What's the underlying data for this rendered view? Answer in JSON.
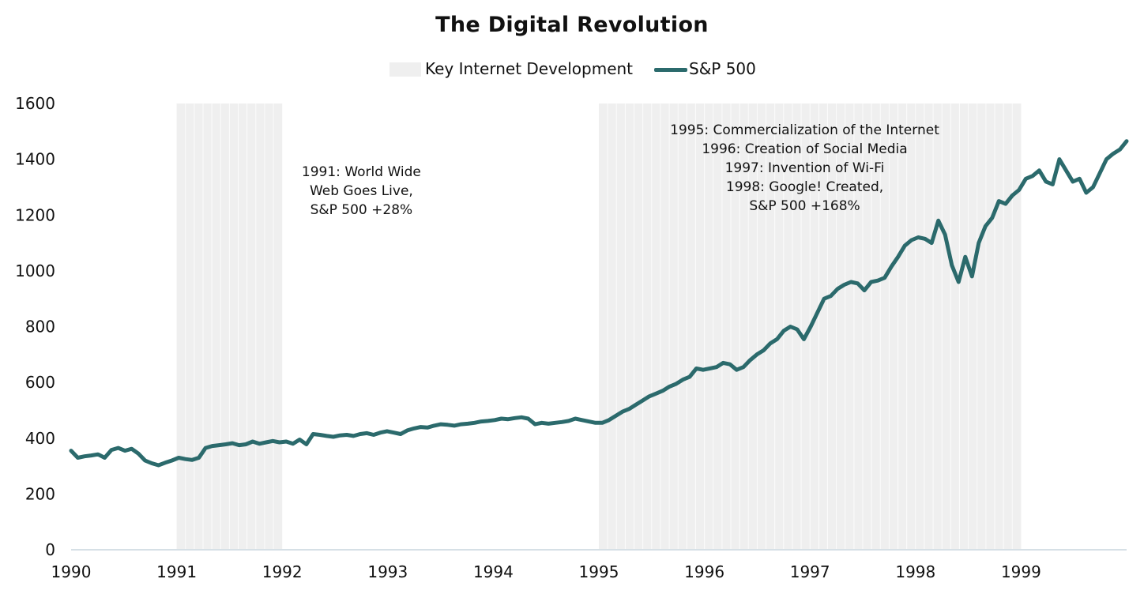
{
  "chart_data": {
    "type": "line",
    "title": "The Digital Revolution",
    "xlabel": "",
    "ylabel": "",
    "ylim": [
      0,
      1600
    ],
    "yticks": [
      "0",
      "200",
      "400",
      "600",
      "800",
      "1000",
      "1200",
      "1400",
      "1600"
    ],
    "xlim": [
      1990,
      2000
    ],
    "xticks": [
      "1990",
      "1991",
      "1992",
      "1993",
      "1994",
      "1995",
      "1996",
      "1997",
      "1998",
      "1999"
    ],
    "grid": false,
    "legend_position": "top-center",
    "legend": [
      {
        "name": "Key Internet Development",
        "kind": "shaded-band",
        "color": "#efefef"
      },
      {
        "name": "S&P 500",
        "kind": "line",
        "color": "#2b6a6c"
      }
    ],
    "shaded_ranges": [
      {
        "name": "Key Internet Development",
        "start": 1991.0,
        "end": 1992.0
      },
      {
        "name": "Key Internet Development",
        "start": 1995.0,
        "end": 1999.0
      }
    ],
    "annotations": [
      {
        "lines": [
          "1991: World Wide",
          "Web Goes Live,",
          "S&P 500 +28%"
        ],
        "x": 1992.75,
        "y": 1340
      },
      {
        "lines": [
          "1995: Commercialization of the Internet",
          "1996: Creation of Social Media",
          "1997: Invention of Wi-Fi",
          "1998: Google! Created,",
          "S&P 500 +168%"
        ],
        "x": 1996.95,
        "y": 1490
      }
    ],
    "series": [
      {
        "name": "S&P 500",
        "color": "#2b6a6c",
        "x_start": 1990.0,
        "x_step": 0.0833333,
        "values": [
          355,
          330,
          335,
          338,
          342,
          330,
          358,
          365,
          355,
          362,
          345,
          320,
          310,
          303,
          312,
          320,
          330,
          325,
          322,
          330,
          365,
          372,
          375,
          378,
          382,
          375,
          378,
          388,
          380,
          385,
          390,
          385,
          388,
          380,
          395,
          378,
          415,
          412,
          408,
          405,
          410,
          412,
          408,
          415,
          418,
          412,
          420,
          425,
          420,
          415,
          428,
          435,
          440,
          438,
          445,
          450,
          448,
          445,
          450,
          452,
          455,
          460,
          462,
          465,
          470,
          468,
          472,
          475,
          470,
          450,
          455,
          452,
          455,
          458,
          462,
          470,
          465,
          460,
          455,
          455,
          465,
          480,
          495,
          505,
          520,
          535,
          550,
          560,
          570,
          585,
          595,
          610,
          620,
          650,
          645,
          650,
          655,
          670,
          665,
          645,
          655,
          680,
          700,
          715,
          740,
          755,
          785,
          800,
          790,
          755,
          800,
          850,
          900,
          910,
          935,
          950,
          960,
          955,
          930,
          960,
          965,
          975,
          1015,
          1050,
          1090,
          1110,
          1120,
          1115,
          1100,
          1180,
          1130,
          1020,
          960,
          1050,
          980,
          1100,
          1160,
          1190,
          1250,
          1240,
          1270,
          1290,
          1330,
          1340,
          1360,
          1320,
          1310,
          1400,
          1360,
          1320,
          1330,
          1280,
          1300,
          1350,
          1400,
          1420,
          1435,
          1465
        ]
      }
    ]
  }
}
